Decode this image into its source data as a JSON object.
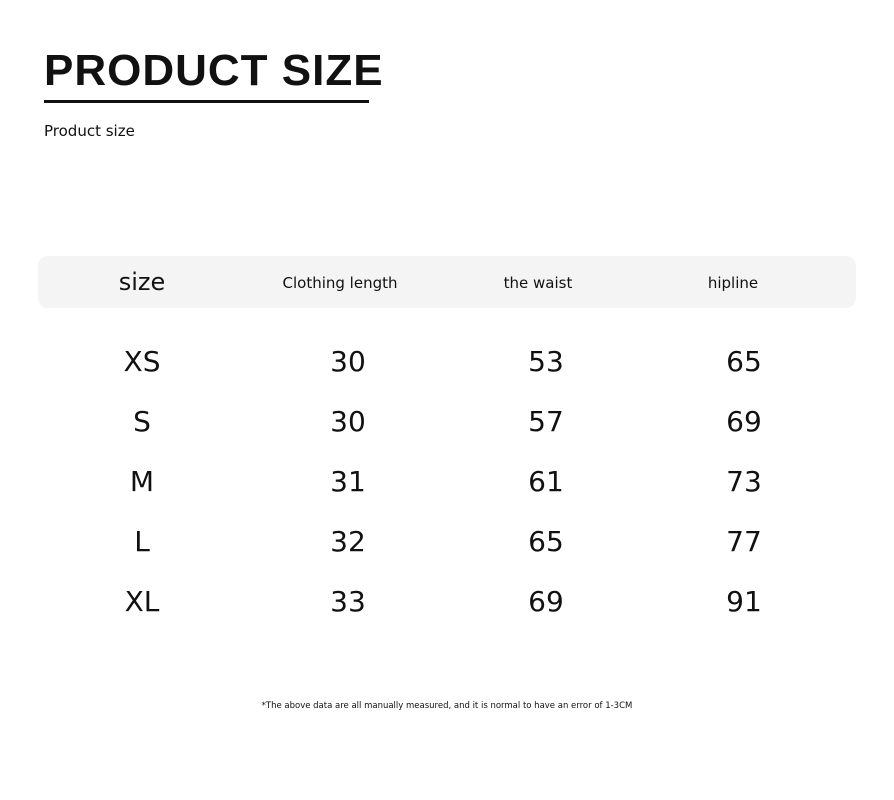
{
  "title": "PRODUCT SIZE",
  "subtitle": "Product size",
  "table": {
    "headers": [
      "size",
      "Clothing length",
      "the waist",
      "hipline"
    ],
    "rows": [
      [
        "XS",
        "30",
        "53",
        "65"
      ],
      [
        "S",
        "30",
        "57",
        "69"
      ],
      [
        "M",
        "31",
        "61",
        "73"
      ],
      [
        "L",
        "32",
        "65",
        "77"
      ],
      [
        "XL",
        "33",
        "69",
        "91"
      ]
    ]
  },
  "note": "*The above data are all manually measured, and it is normal to have an error of 1-3CM"
}
